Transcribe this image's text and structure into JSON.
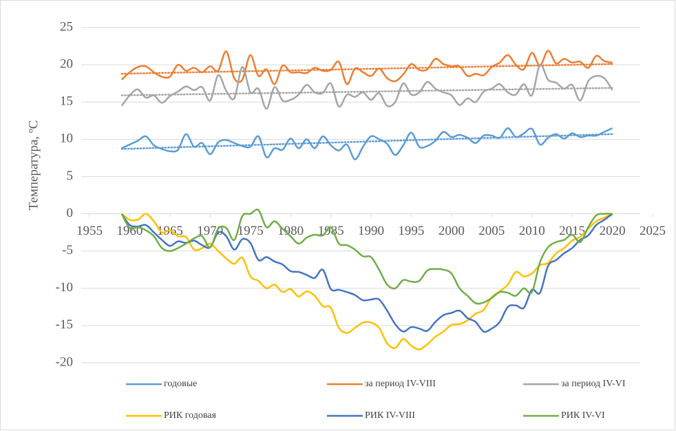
{
  "chart_data": {
    "type": "line",
    "y_label": "Температура, ºC",
    "x": [
      1959,
      1960,
      1961,
      1962,
      1963,
      1964,
      1965,
      1966,
      1967,
      1968,
      1969,
      1970,
      1971,
      1972,
      1973,
      1974,
      1975,
      1976,
      1977,
      1978,
      1979,
      1980,
      1981,
      1982,
      1983,
      1984,
      1985,
      1986,
      1987,
      1988,
      1989,
      1990,
      1991,
      1992,
      1993,
      1994,
      1995,
      1996,
      1997,
      1998,
      1999,
      2000,
      2001,
      2002,
      2003,
      2004,
      2005,
      2006,
      2007,
      2008,
      2009,
      2010,
      2011,
      2012,
      2013,
      2014,
      2015,
      2016,
      2017,
      2018,
      2019,
      2020
    ],
    "xlim": [
      1955,
      2025
    ],
    "xticks": [
      1955,
      1960,
      1965,
      1970,
      1975,
      1980,
      1985,
      1990,
      1995,
      2000,
      2005,
      2010,
      2015,
      2020,
      2025
    ],
    "ylim": [
      -20,
      25
    ],
    "yticks": [
      -20,
      -15,
      -10,
      -5,
      0,
      5,
      10,
      15,
      20,
      25
    ],
    "grid": true,
    "series": [
      {
        "name": "годовые",
        "color": "#5b9bd5",
        "trend": [
          8.7,
          10.7
        ],
        "values": [
          8.8,
          9.3,
          9.8,
          10.4,
          9.2,
          8.7,
          8.4,
          8.6,
          10.7,
          9.0,
          9.5,
          8.0,
          9.6,
          9.9,
          9.5,
          9.1,
          9.0,
          10.4,
          7.6,
          8.8,
          8.6,
          10.1,
          8.8,
          10.0,
          8.8,
          10.4,
          9.2,
          8.5,
          9.3,
          7.3,
          9.0,
          10.4,
          10.0,
          9.4,
          7.9,
          9.2,
          10.9,
          9.0,
          9.1,
          9.8,
          11.0,
          10.3,
          10.6,
          10.2,
          9.5,
          10.5,
          10.5,
          10.2,
          11.5,
          10.3,
          10.8,
          11.4,
          9.3,
          10.2,
          10.7,
          10.1,
          10.8,
          10.3,
          10.5,
          10.5,
          11.0,
          11.5
        ]
      },
      {
        "name": "за период IV-VIII",
        "color": "#ed7d31",
        "trend": [
          18.8,
          20.1
        ],
        "values": [
          18.0,
          19.0,
          19.7,
          19.8,
          19.0,
          18.4,
          18.4,
          20.0,
          19.2,
          19.6,
          19.0,
          19.8,
          19.2,
          21.8,
          18.2,
          18.0,
          21.3,
          18.5,
          19.4,
          17.4,
          19.9,
          19.0,
          19.0,
          18.9,
          19.6,
          19.2,
          19.3,
          20.4,
          17.4,
          19.5,
          19.0,
          18.5,
          19.5,
          18.2,
          17.8,
          18.7,
          20.1,
          19.3,
          19.4,
          20.8,
          20.1,
          19.8,
          19.8,
          18.5,
          18.8,
          18.6,
          19.7,
          20.3,
          21.3,
          20.0,
          19.4,
          21.6,
          19.9,
          21.9,
          20.2,
          20.8,
          20.3,
          20.4,
          19.6,
          21.2,
          20.5,
          20.3
        ]
      },
      {
        "name": "за период IV-VI",
        "color": "#a5a5a5",
        "trend": [
          15.9,
          16.9
        ],
        "values": [
          14.5,
          15.9,
          16.7,
          15.6,
          15.9,
          14.9,
          15.8,
          16.4,
          17.1,
          16.6,
          17.0,
          15.2,
          18.6,
          16.5,
          15.5,
          19.7,
          16.3,
          16.8,
          14.1,
          17.0,
          15.2,
          15.3,
          16.0,
          17.3,
          16.3,
          16.2,
          17.5,
          14.4,
          16.0,
          15.7,
          16.3,
          15.3,
          16.2,
          14.5,
          15.0,
          17.5,
          16.0,
          16.3,
          17.7,
          16.8,
          16.3,
          15.9,
          14.6,
          15.5,
          15.0,
          16.4,
          16.8,
          17.4,
          16.3,
          16.0,
          17.4,
          15.9,
          20.0,
          18.0,
          17.6,
          16.8,
          17.3,
          15.2,
          17.8,
          18.5,
          18.2,
          16.6
        ]
      },
      {
        "name": "РИК годовая",
        "color": "#ffc000",
        "values": [
          0,
          -0.8,
          -0.8,
          0,
          -1.0,
          -2.5,
          -2.2,
          -3.0,
          -3.1,
          -4.8,
          -4.6,
          -4.0,
          -5.0,
          -6.0,
          -6.7,
          -5.9,
          -8.4,
          -9.0,
          -10.0,
          -9.5,
          -10.5,
          -10.1,
          -11.1,
          -10.4,
          -11.0,
          -12.4,
          -12.6,
          -15.3,
          -16.0,
          -15.3,
          -14.6,
          -14.6,
          -15.3,
          -17.4,
          -18.0,
          -16.8,
          -17.7,
          -18.2,
          -17.5,
          -16.5,
          -15.8,
          -14.9,
          -14.8,
          -14.3,
          -13.4,
          -12.9,
          -11.2,
          -10.4,
          -9.5,
          -7.8,
          -8.4,
          -8.0,
          -6.9,
          -6.6,
          -5.3,
          -4.6,
          -3.6,
          -3.1,
          -2.0,
          -1.0,
          -0.5,
          0
        ]
      },
      {
        "name": "РИК IV-VIII",
        "color": "#4472c4",
        "values": [
          0,
          -1.5,
          -1.7,
          -1.5,
          -2.5,
          -3.5,
          -4.3,
          -3.7,
          -3.9,
          -3.6,
          -4.2,
          -4.5,
          -2.5,
          -3.0,
          -4.8,
          -3.4,
          -3.9,
          -6.2,
          -5.8,
          -6.4,
          -6.8,
          -7.7,
          -7.8,
          -8.2,
          -8.6,
          -7.5,
          -10.1,
          -10.2,
          -10.5,
          -10.9,
          -11.6,
          -11.5,
          -11.5,
          -13.0,
          -14.8,
          -15.8,
          -15.2,
          -15.4,
          -15.7,
          -14.5,
          -13.6,
          -13.3,
          -13.0,
          -14.0,
          -14.5,
          -15.8,
          -15.4,
          -14.5,
          -12.5,
          -12.3,
          -12.6,
          -10.2,
          -10.6,
          -7.0,
          -6.2,
          -5.3,
          -4.6,
          -3.5,
          -2.9,
          -1.5,
          -0.8,
          0
        ]
      },
      {
        "name": "РИК IV-VI",
        "color": "#70ad47",
        "values": [
          0,
          -1.9,
          -1.8,
          -2.2,
          -3.0,
          -4.6,
          -5.0,
          -4.6,
          -4.0,
          -3.3,
          -3.0,
          -4.5,
          -2.0,
          -1.9,
          -3.5,
          -0.3,
          0,
          0.5,
          -1.8,
          -1.0,
          -2.0,
          -3.0,
          -4.0,
          -3.2,
          -2.8,
          -2.9,
          -1.8,
          -4.0,
          -4.2,
          -4.8,
          -5.7,
          -5.8,
          -7.5,
          -9.5,
          -10.0,
          -8.9,
          -9.1,
          -9.0,
          -7.6,
          -7.4,
          -7.5,
          -8.0,
          -10.0,
          -11.0,
          -12.0,
          -11.9,
          -11.3,
          -10.5,
          -10.6,
          -11.0,
          -10.0,
          -10.5,
          -6.5,
          -4.5,
          -3.8,
          -3.5,
          -2.8,
          -3.8,
          -1.8,
          -0.2,
          0,
          0
        ]
      }
    ]
  }
}
